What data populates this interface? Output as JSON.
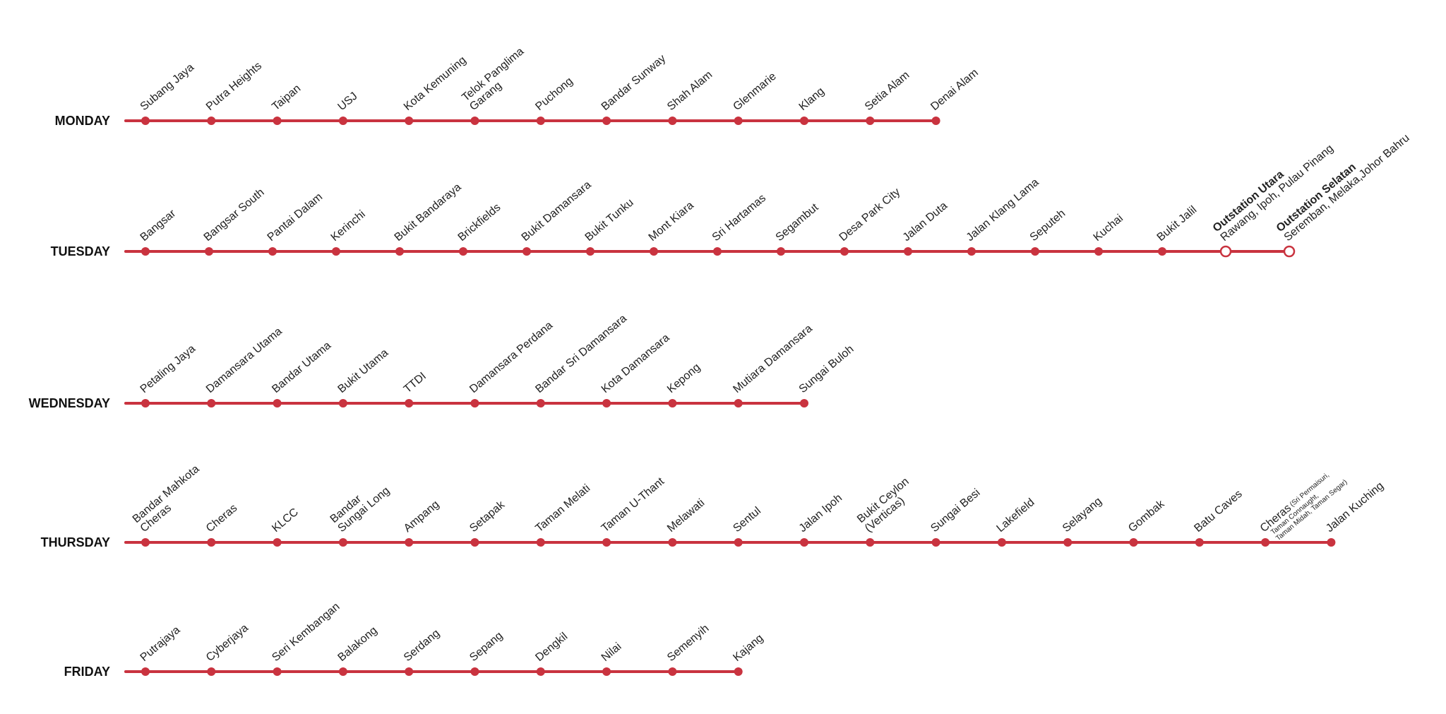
{
  "colors": {
    "line": "#c9333f",
    "text": "#222222",
    "background": "#ffffff"
  },
  "routes": [
    {
      "day": "MONDAY",
      "stops": [
        {
          "lines": [
            "Subang Jaya"
          ]
        },
        {
          "lines": [
            "Putra Heights"
          ]
        },
        {
          "lines": [
            "Taipan"
          ]
        },
        {
          "lines": [
            "USJ"
          ]
        },
        {
          "lines": [
            "Kota Kemuning"
          ]
        },
        {
          "lines": [
            "Telok Panglima",
            "Garang"
          ]
        },
        {
          "lines": [
            "Puchong"
          ]
        },
        {
          "lines": [
            "Bandar Sunway"
          ]
        },
        {
          "lines": [
            "Shah Alam"
          ]
        },
        {
          "lines": [
            "Glenmarie"
          ]
        },
        {
          "lines": [
            "Klang"
          ]
        },
        {
          "lines": [
            "Setia Alam"
          ]
        },
        {
          "lines": [
            "Denai Alam"
          ]
        }
      ]
    },
    {
      "day": "TUESDAY",
      "stops": [
        {
          "lines": [
            "Bangsar"
          ]
        },
        {
          "lines": [
            "Bangsar South"
          ]
        },
        {
          "lines": [
            "Pantai Dalam"
          ]
        },
        {
          "lines": [
            "Kerinchi"
          ]
        },
        {
          "lines": [
            "Bukit Bandaraya"
          ]
        },
        {
          "lines": [
            "Brickfields"
          ]
        },
        {
          "lines": [
            "Bukit Damansara"
          ]
        },
        {
          "lines": [
            "Bukit Tunku"
          ]
        },
        {
          "lines": [
            "Mont Kiara"
          ]
        },
        {
          "lines": [
            "Sri Hartamas"
          ]
        },
        {
          "lines": [
            "Segambut"
          ]
        },
        {
          "lines": [
            "Desa Park City"
          ]
        },
        {
          "lines": [
            "Jalan Duta"
          ]
        },
        {
          "lines": [
            "Jalan Klang Lama"
          ]
        },
        {
          "lines": [
            "Seputeh"
          ]
        },
        {
          "lines": [
            "Kuchai"
          ]
        },
        {
          "lines": [
            "Bukit Jalil"
          ]
        },
        {
          "lines": [
            "Outstation Utara",
            "Rawang, Ipoh, Pulau Pinang"
          ],
          "bold_first": true,
          "hollow": true
        },
        {
          "lines": [
            "Outstation Selatan",
            "Seremban, Melaka,Johor Bahru"
          ],
          "bold_first": true,
          "hollow": true
        }
      ]
    },
    {
      "day": "WEDNESDAY",
      "stops": [
        {
          "lines": [
            "Petaling Jaya"
          ]
        },
        {
          "lines": [
            "Damansara Utama"
          ]
        },
        {
          "lines": [
            "Bandar Utama"
          ]
        },
        {
          "lines": [
            "Bukit Utama"
          ]
        },
        {
          "lines": [
            "TTDI"
          ]
        },
        {
          "lines": [
            "Damansara Perdana"
          ]
        },
        {
          "lines": [
            "Bandar Sri Damansara"
          ]
        },
        {
          "lines": [
            "Kota Damansara"
          ]
        },
        {
          "lines": [
            "Kepong"
          ]
        },
        {
          "lines": [
            "Mutiara Damansara"
          ]
        },
        {
          "lines": [
            "Sungai Buloh"
          ]
        }
      ]
    },
    {
      "day": "THURSDAY",
      "stops": [
        {
          "lines": [
            "Bandar Mahkota",
            "Cheras"
          ]
        },
        {
          "lines": [
            "Cheras"
          ]
        },
        {
          "lines": [
            "KLCC"
          ]
        },
        {
          "lines": [
            "Bandar",
            "Sungai Long"
          ]
        },
        {
          "lines": [
            "Ampang"
          ]
        },
        {
          "lines": [
            "Setapak"
          ]
        },
        {
          "lines": [
            "Taman Melati"
          ]
        },
        {
          "lines": [
            "Taman U-Thant"
          ]
        },
        {
          "lines": [
            "Melawati"
          ]
        },
        {
          "lines": [
            "Sentul"
          ]
        },
        {
          "lines": [
            "Jalan Ipoh"
          ]
        },
        {
          "lines": [
            "Bukit Ceylon",
            "(Verticas)"
          ]
        },
        {
          "lines": [
            "Sungai Besi"
          ]
        },
        {
          "lines": [
            "Lakefield"
          ]
        },
        {
          "lines": [
            "Selayang"
          ]
        },
        {
          "lines": [
            "Gombak"
          ]
        },
        {
          "lines": [
            "Batu Caves"
          ]
        },
        {
          "lines": [
            "Cheras"
          ],
          "note_lines": [
            "(Sri Permaisuri,",
            "Taman Connaught,",
            "Taman Midah, Taman Segar)"
          ]
        },
        {
          "lines": [
            "Jalan Kuching"
          ]
        }
      ]
    },
    {
      "day": "FRIDAY",
      "stops": [
        {
          "lines": [
            "Putrajaya"
          ]
        },
        {
          "lines": [
            "Cyberjaya"
          ]
        },
        {
          "lines": [
            "Seri Kembangan"
          ]
        },
        {
          "lines": [
            "Balakong"
          ]
        },
        {
          "lines": [
            "Serdang"
          ]
        },
        {
          "lines": [
            "Sepang"
          ]
        },
        {
          "lines": [
            "Dengkil"
          ]
        },
        {
          "lines": [
            "Nilai"
          ]
        },
        {
          "lines": [
            "Semenyih"
          ]
        },
        {
          "lines": [
            "Kajang"
          ]
        }
      ]
    }
  ]
}
